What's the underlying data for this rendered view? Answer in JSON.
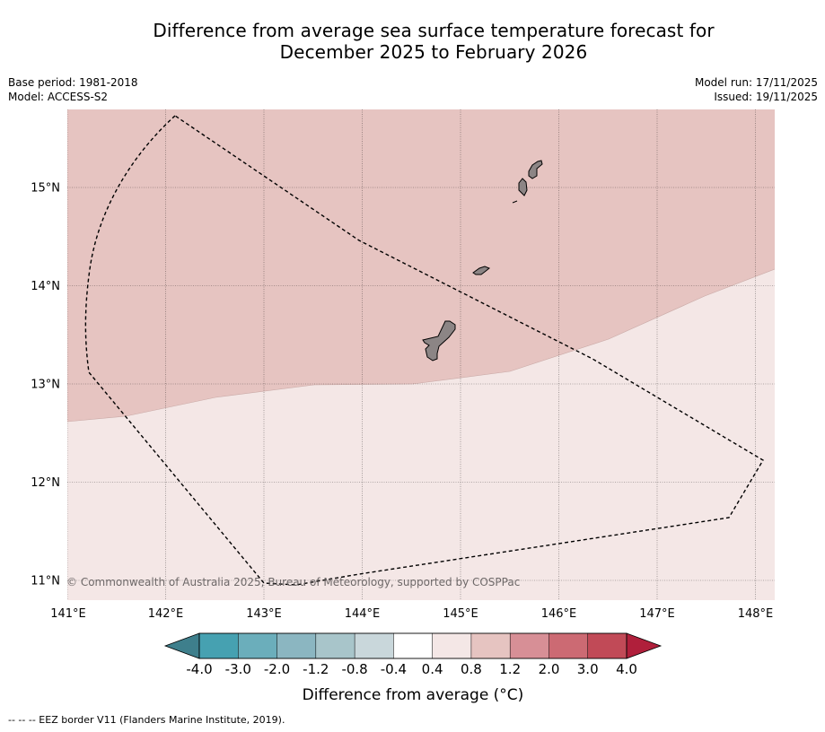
{
  "title_line1": "Difference from average sea surface temperature forecast for",
  "title_line2": "December 2025 to February 2026",
  "meta": {
    "base_period": "Base period: 1981-2018",
    "model": "Model: ACCESS-S2",
    "model_run": "Model run: 17/11/2025",
    "issued": "Issued: 19/11/2025"
  },
  "copyright": "© Commonwealth of Australia 2025, Bureau of Meteorology, supported by COSPPac",
  "footnote": "--  --  -- EEZ border V11 (Flanders Marine Institute, 2019).",
  "map": {
    "lon_labels": [
      "141°E",
      "142°E",
      "143°E",
      "144°E",
      "145°E",
      "146°E",
      "147°E",
      "148°E"
    ],
    "lat_labels": [
      "15°N",
      "14°N",
      "13°N",
      "12°N",
      "11°N"
    ],
    "lon_range": [
      141.0,
      148.2
    ],
    "lat_range": [
      10.8,
      15.8
    ],
    "anomaly_zones": [
      {
        "range": "0.8 to 1.2",
        "color": "#e6c4c1",
        "position": "north"
      },
      {
        "range": "0.4 to 0.8",
        "color": "#f4e7e6",
        "position": "south"
      }
    ],
    "land_color": "#8c8585",
    "islands": [
      "Guam",
      "Rota",
      "Tinian",
      "Saipan"
    ]
  },
  "colorbar": {
    "title": "Difference from average (°C)",
    "labels": [
      "-4.0",
      "-3.0",
      "-2.0",
      "-1.2",
      "-0.8",
      "-0.4",
      "0.4",
      "0.8",
      "1.2",
      "2.0",
      "3.0",
      "4.0"
    ],
    "under_color": "#3e7f8c",
    "over_color": "#b01f3b",
    "colors": [
      "#46a1b1",
      "#6baebb",
      "#8bb6c1",
      "#a8c5ca",
      "#c9d7db",
      "#ffffff",
      "#f4e7e6",
      "#e6c4c1",
      "#d78f96",
      "#cc6a73",
      "#c14a57"
    ]
  }
}
